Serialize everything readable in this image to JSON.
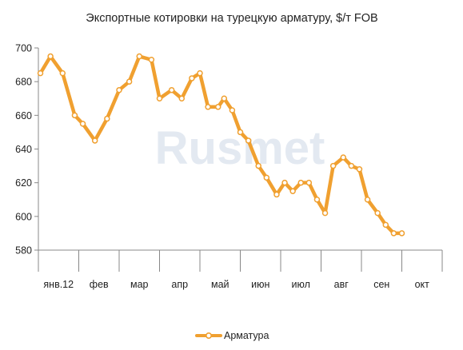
{
  "chart_data": {
    "type": "line",
    "title": "Экспортные котировки на турецкую арматуру, $/т FOB",
    "watermark": "Rusmet",
    "xlabel": "",
    "ylabel": "",
    "categories": [
      "янв.12",
      "фев",
      "мар",
      "апр",
      "май",
      "июн",
      "июл",
      "авг",
      "сен",
      "окт"
    ],
    "ylim": [
      580,
      700
    ],
    "yticks": [
      580,
      600,
      620,
      640,
      660,
      680,
      700
    ],
    "grid": false,
    "legend": "bottom",
    "series": [
      {
        "name": "Арматура",
        "color": "#f0a030",
        "x": [
          0.05,
          0.3,
          0.6,
          0.9,
          1.1,
          1.4,
          1.7,
          2.0,
          2.25,
          2.5,
          2.8,
          3.0,
          3.3,
          3.55,
          3.8,
          4.0,
          4.2,
          4.45,
          4.6,
          4.8,
          5.0,
          5.2,
          5.45,
          5.65,
          5.9,
          6.1,
          6.3,
          6.5,
          6.7,
          6.9,
          7.1,
          7.3,
          7.55,
          7.75,
          7.95,
          8.15,
          8.4,
          8.6,
          8.8,
          9.0
        ],
        "values": [
          685,
          695,
          685,
          660,
          655,
          645,
          658,
          675,
          680,
          695,
          693,
          670,
          675,
          670,
          682,
          685,
          665,
          665,
          670,
          663,
          650,
          645,
          630,
          623,
          613,
          620,
          615,
          620,
          620,
          610,
          602,
          630,
          635,
          630,
          628,
          610,
          602,
          595,
          590,
          590
        ]
      }
    ]
  }
}
